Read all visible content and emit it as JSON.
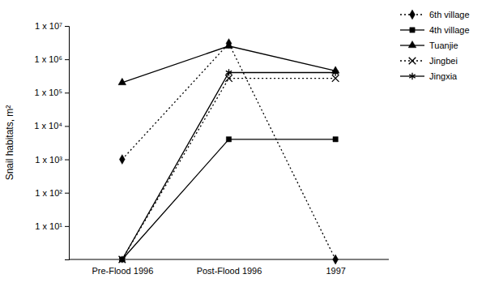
{
  "chart_data": {
    "type": "line",
    "y_label": "Snail habitats, m²",
    "categories": [
      "Pre-Flood 1996",
      "Post-Flood 1996",
      "1997"
    ],
    "log": "y",
    "grid": false,
    "legend": "upper right",
    "ylim": [
      1,
      10000000
    ],
    "yticks": [
      {
        "value": 10,
        "label": "1 x 10¹"
      },
      {
        "value": 100,
        "label": "1 x 10²"
      },
      {
        "value": 1000,
        "label": "1 x 10³"
      },
      {
        "value": 10000,
        "label": "1 x 10⁴"
      },
      {
        "value": 100000,
        "label": "1 x 10⁵"
      },
      {
        "value": 1000000,
        "label": "1 x 10⁶"
      },
      {
        "value": 10000000,
        "label": "1 x 10⁷"
      }
    ],
    "series": [
      {
        "name": "6th village",
        "color": "#000000",
        "marker": "diamond",
        "line_style": "dotted",
        "values": [
          1000,
          3000000,
          1
        ]
      },
      {
        "name": "4th village",
        "color": "#000000",
        "marker": "square",
        "line_style": "solid",
        "values": [
          1,
          4000,
          4000
        ]
      },
      {
        "name": "Tuanjie",
        "color": "#000000",
        "marker": "triangle",
        "line_style": "solid",
        "values": [
          200000,
          2500000,
          450000
        ]
      },
      {
        "name": "Jingbei",
        "color": "#000000",
        "marker": "x",
        "line_style": "dotted",
        "values": [
          1,
          270000,
          270000
        ]
      },
      {
        "name": "Jingxia",
        "color": "#000000",
        "marker": "asterisk",
        "line_style": "solid",
        "values": [
          1,
          400000,
          400000
        ]
      }
    ]
  }
}
